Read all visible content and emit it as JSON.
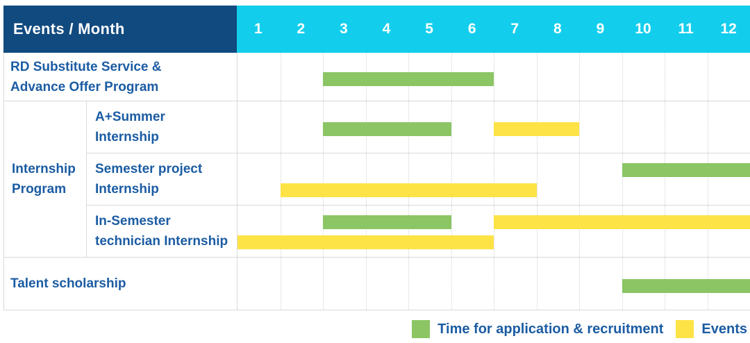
{
  "colors": {
    "navy": "#114A7F",
    "cyan": "#12CEEC",
    "label_blue": "#1B5CA3",
    "grid": "#D9D9D9",
    "application": "#8BC564",
    "event": "#FDE345"
  },
  "header": {
    "corner_label": "Events / Month"
  },
  "legend": {
    "items": [
      {
        "type": "application",
        "label": "Time for application & recruitment"
      },
      {
        "type": "event",
        "label": "Events"
      }
    ]
  },
  "chart_data": {
    "type": "gantt",
    "title": "Events / Month",
    "months": [
      "1",
      "2",
      "3",
      "4",
      "5",
      "6",
      "7",
      "8",
      "9",
      "10",
      "11",
      "12"
    ],
    "x_range": [
      1,
      12
    ],
    "legend_position": "bottom-right",
    "bar_types": {
      "application": "Time for application & recruitment (green)",
      "event": "Events (yellow)"
    },
    "group": {
      "label_lines": [
        "Internship",
        "Program"
      ],
      "row_indexes": [
        1,
        2,
        3
      ]
    },
    "rows": [
      {
        "label_lines": [
          "RD Substitute Service &",
          "Advance Offer Program"
        ],
        "lanes": [
          [
            {
              "type": "application",
              "start": 3,
              "end": 6
            }
          ]
        ]
      },
      {
        "group": "Internship Program",
        "label_lines": [
          "A+Summer",
          "Internship"
        ],
        "lanes": [
          [
            {
              "type": "application",
              "start": 3,
              "end": 5
            },
            {
              "type": "event",
              "start": 7,
              "end": 8
            }
          ]
        ]
      },
      {
        "group": "Internship Program",
        "label_lines": [
          "Semester project",
          "Internship"
        ],
        "lanes": [
          [
            {
              "type": "application",
              "start": 10,
              "end": 12
            }
          ],
          [
            {
              "type": "event",
              "start": 2,
              "end": 7
            }
          ]
        ]
      },
      {
        "group": "Internship Program",
        "label_lines": [
          "In-Semester",
          "technician Internship"
        ],
        "lanes": [
          [
            {
              "type": "application",
              "start": 3,
              "end": 5
            },
            {
              "type": "event",
              "start": 7,
              "end": 12
            }
          ],
          [
            {
              "type": "event",
              "start": 1,
              "end": 6
            }
          ]
        ]
      },
      {
        "label_lines": [
          "Talent scholarship"
        ],
        "lanes": [
          [
            {
              "type": "application",
              "start": 10,
              "end": 12
            }
          ]
        ]
      }
    ]
  }
}
